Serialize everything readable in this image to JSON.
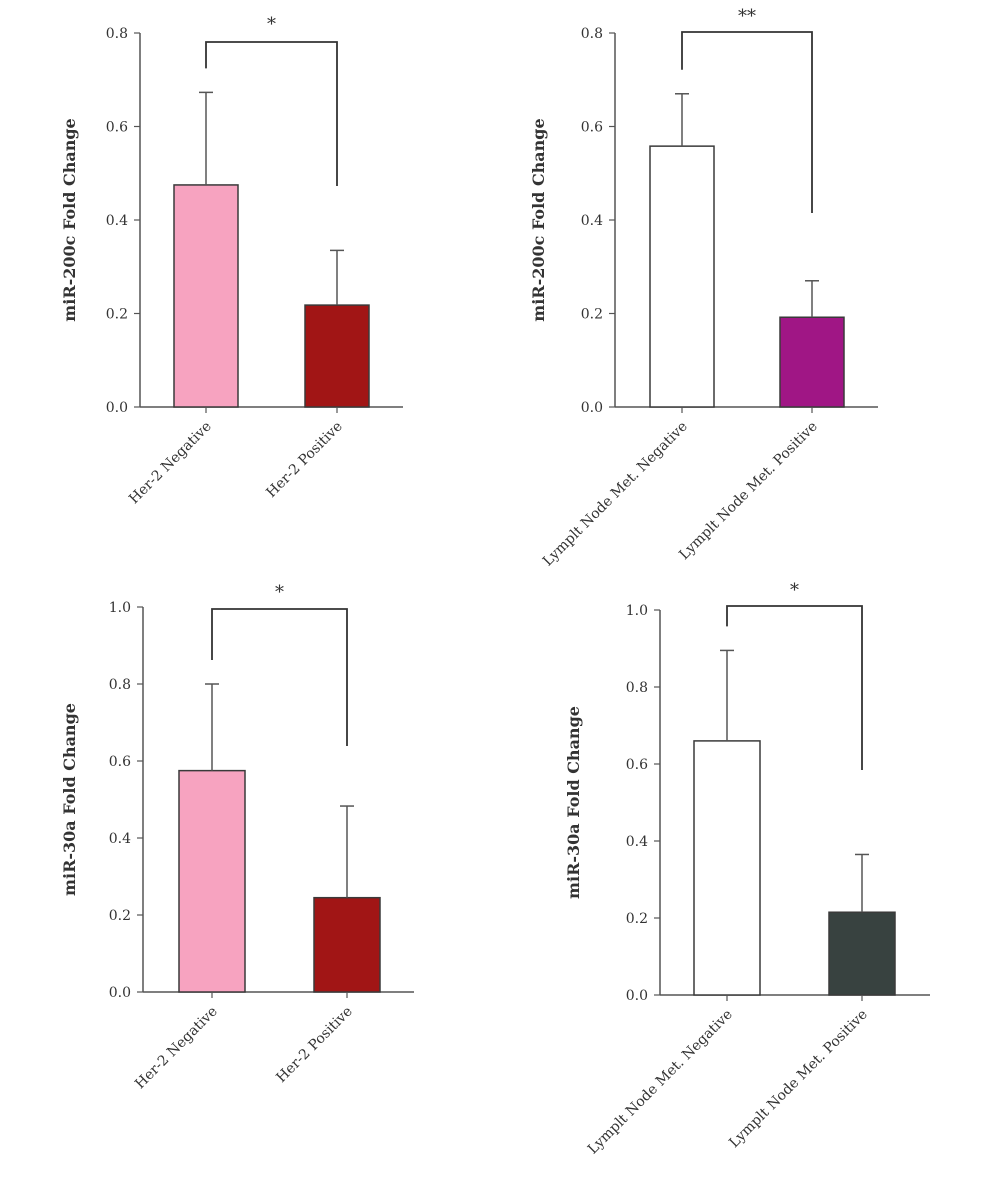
{
  "chart_data": [
    {
      "type": "bar",
      "ylabel": "miR-200c Fold Change",
      "ylim": [
        0,
        0.8
      ],
      "yticks": [
        "0.0",
        "0.2",
        "0.4",
        "0.6",
        "0.8"
      ],
      "categories": [
        "Her-2 Negative",
        "Her-2 Positive"
      ],
      "values": [
        0.475,
        0.218
      ],
      "error": [
        0.198,
        0.117
      ],
      "colors": [
        "#f7a3c0",
        "#a11515"
      ],
      "significance": "*"
    },
    {
      "type": "bar",
      "ylabel": "miR-200c Fold Change",
      "ylim": [
        0,
        0.8
      ],
      "yticks": [
        "0.0",
        "0.2",
        "0.4",
        "0.6",
        "0.8"
      ],
      "categories": [
        "Lymplt Node Met. Negative",
        "Lymplt Node Met. Positive"
      ],
      "values": [
        0.558,
        0.192
      ],
      "error": [
        0.112,
        0.078
      ],
      "colors": [
        "#ffffff",
        "#a01685"
      ],
      "significance": "**"
    },
    {
      "type": "bar",
      "ylabel": "miR-30a Fold Change",
      "ylim": [
        0,
        1.0
      ],
      "yticks": [
        "0.0",
        "0.2",
        "0.4",
        "0.6",
        "0.8",
        "1.0"
      ],
      "categories": [
        "Her-2 Negative",
        "Her-2 Positive"
      ],
      "values": [
        0.575,
        0.245
      ],
      "error": [
        0.225,
        0.238
      ],
      "colors": [
        "#f7a3c0",
        "#a11515"
      ],
      "significance": "*"
    },
    {
      "type": "bar",
      "ylabel": "miR-30a Fold Change",
      "ylim": [
        0,
        1.0
      ],
      "yticks": [
        "0.0",
        "0.2",
        "0.4",
        "0.6",
        "0.8",
        "1.0"
      ],
      "categories": [
        "Lymplt Node Met. Negative",
        "Lymplt Node Met. Positive"
      ],
      "values": [
        0.66,
        0.215
      ],
      "error": [
        0.235,
        0.15
      ],
      "colors": [
        "#ffffff",
        "#384240"
      ],
      "significance": "*"
    }
  ]
}
